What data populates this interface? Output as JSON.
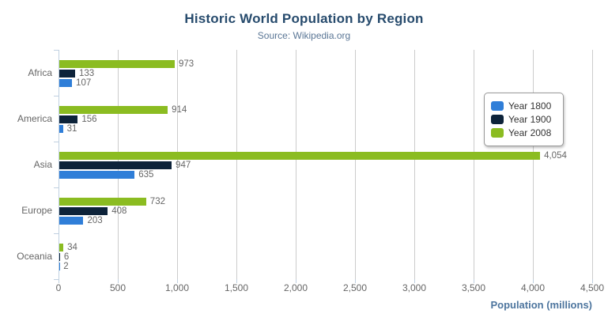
{
  "header": {
    "title": "Historic World Population by Region",
    "subtitle": "Source: Wikipedia.org"
  },
  "toolbar": {
    "context_menu_icon": "hamburger-icon"
  },
  "colors": {
    "title": "#274b6d",
    "subtitle": "#5a7695",
    "axis_title": "#4d759e",
    "tick_labels": "#666666",
    "data_labels": "#666666",
    "grid_line": "#cccccc",
    "axis_line": "#c0d0e0",
    "legend_border": "#999999",
    "legend_text": "#333333",
    "menu_icon": "#666666"
  },
  "chart_data": {
    "type": "bar",
    "orientation": "horizontal",
    "title": "Historic World Population by Region",
    "subtitle": "Source: Wikipedia.org",
    "categories": [
      "Africa",
      "America",
      "Asia",
      "Europe",
      "Oceania"
    ],
    "series": [
      {
        "name": "Year 1800",
        "color": "#2f7ed8",
        "values": [
          107,
          31,
          635,
          203,
          2
        ]
      },
      {
        "name": "Year 1900",
        "color": "#0d233a",
        "values": [
          133,
          156,
          947,
          408,
          6
        ]
      },
      {
        "name": "Year 2008",
        "color": "#8bbc21",
        "values": [
          973,
          914,
          4054,
          732,
          34
        ]
      }
    ],
    "series_draw_order_top_to_bottom": [
      "Year 2008",
      "Year 1900",
      "Year 1800"
    ],
    "xlabel": "Population (millions)",
    "xlim": [
      0,
      4500
    ],
    "x_ticks": [
      0,
      500,
      1000,
      1500,
      2000,
      2500,
      3000,
      3500,
      4000,
      4500
    ],
    "x_tick_labels": [
      "0",
      "500",
      "1,000",
      "1,500",
      "2,000",
      "2,500",
      "3,000",
      "3,500",
      "4,000",
      "4,500"
    ],
    "grid": true,
    "data_labels": true,
    "legend": {
      "position": "right-top",
      "entries": [
        "Year 1800",
        "Year 1900",
        "Year 2008"
      ]
    }
  }
}
